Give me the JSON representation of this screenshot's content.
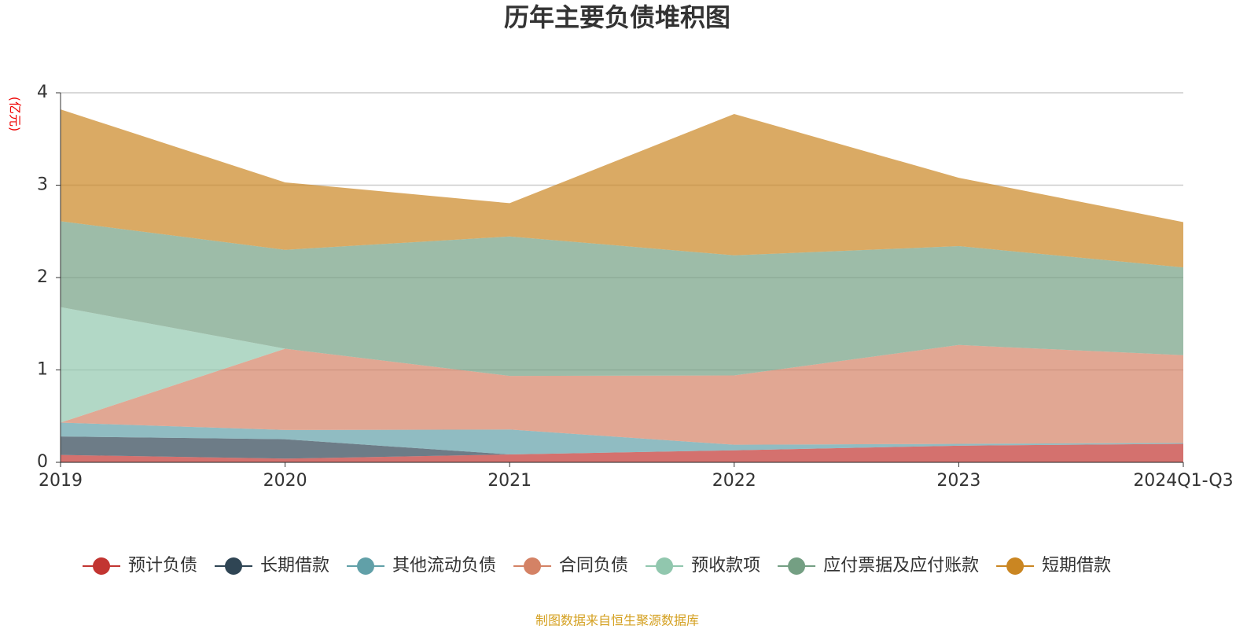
{
  "chart_data": {
    "type": "stacked_area",
    "title": "历年主要负债堆积图",
    "y_label": "(亿元)",
    "source": "制图数据来自恒生聚源数据库",
    "categories": [
      "2019",
      "2020",
      "2021",
      "2022",
      "2023",
      "2024Q1-Q3"
    ],
    "ylim": [
      0,
      4
    ],
    "yticks": [
      0,
      1,
      2,
      3,
      4
    ],
    "grid": true,
    "series": [
      {
        "name": "预计负债",
        "color": "#c23531",
        "values": [
          0.08,
          0.04,
          0.085,
          0.13,
          0.18,
          0.2
        ]
      },
      {
        "name": "长期借款",
        "color": "#2f4554",
        "values": [
          0.2,
          0.21,
          0,
          0,
          0,
          0
        ]
      },
      {
        "name": "其他流动负债",
        "color": "#61a0a8",
        "values": [
          0.15,
          0.1,
          0.27,
          0.06,
          0.02,
          0.01
        ]
      },
      {
        "name": "合同负债",
        "color": "#d48265",
        "values": [
          0,
          0.88,
          0.58,
          0.75,
          1.07,
          0.95
        ]
      },
      {
        "name": "预收款项",
        "color": "#91c7ae",
        "values": [
          1.25,
          0,
          0,
          0,
          0,
          0
        ]
      },
      {
        "name": "应付票据及应付账款",
        "color": "#749f83",
        "values": [
          0.93,
          1.07,
          1.51,
          1.3,
          1.07,
          0.95
        ]
      },
      {
        "name": "短期借款",
        "color": "#ca8622",
        "values": [
          1.21,
          0.73,
          0.36,
          1.53,
          0.74,
          0.49
        ]
      }
    ]
  }
}
